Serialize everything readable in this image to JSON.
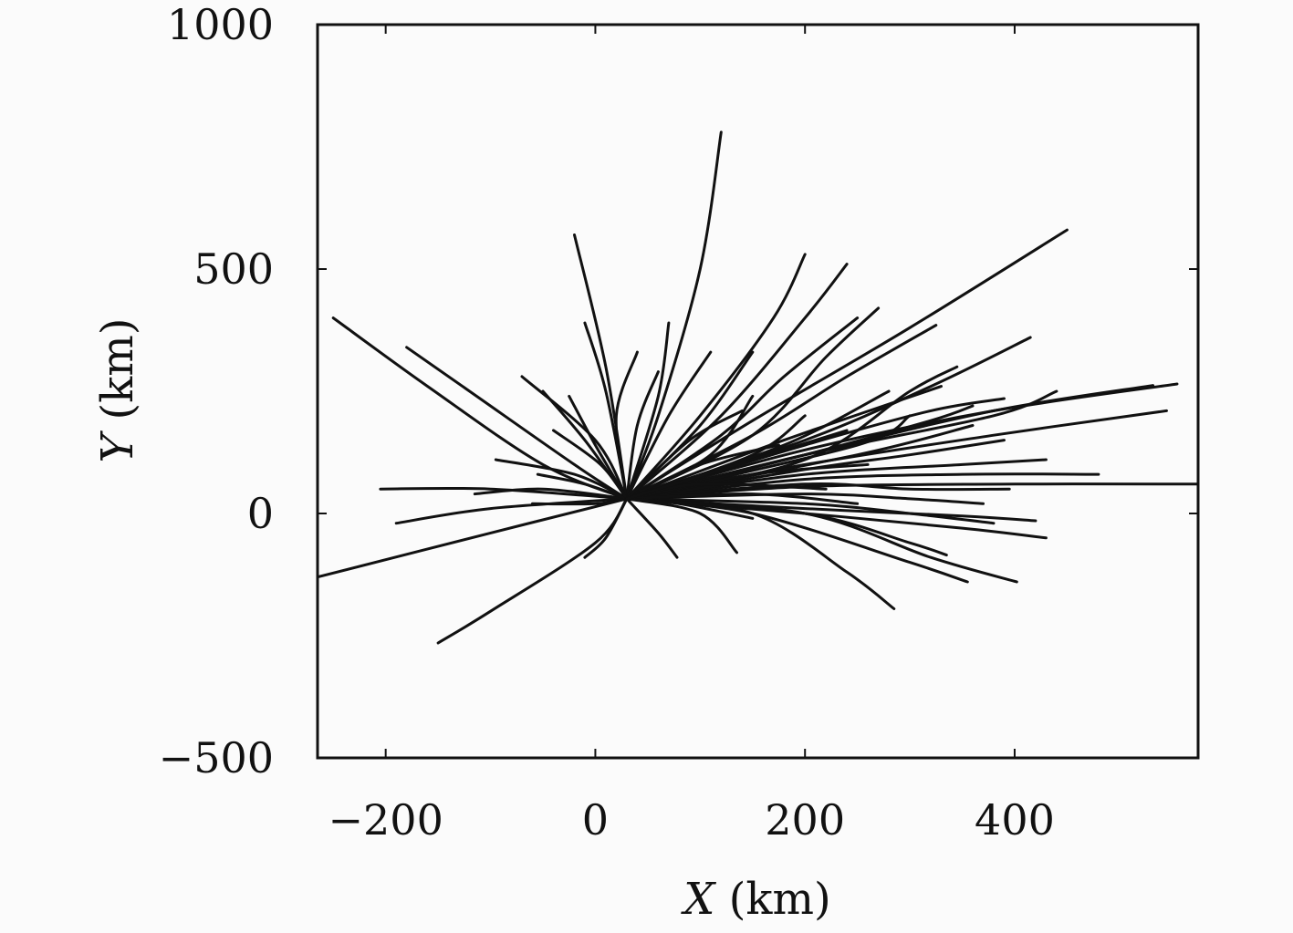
{
  "chart_data": {
    "type": "line",
    "xlabel_var": "X",
    "xlabel_unit": " (km)",
    "ylabel_var": "Y",
    "ylabel_unit": " (km)",
    "xlim": [
      -265,
      575
    ],
    "ylim": [
      -500,
      1000
    ],
    "x_ticks": [
      {
        "value": -200,
        "label": "−200"
      },
      {
        "value": 0,
        "label": "0"
      },
      {
        "value": 200,
        "label": "200"
      },
      {
        "value": 400,
        "label": "400"
      }
    ],
    "y_ticks": [
      {
        "value": -500,
        "label": "−500"
      },
      {
        "value": 0,
        "label": "0"
      },
      {
        "value": 500,
        "label": "500"
      },
      {
        "value": 1000,
        "label": "1000"
      }
    ],
    "line_color": "#111111",
    "grid": false,
    "legend": false,
    "series": [
      {
        "x": [
          30,
          60,
          100,
          120
        ],
        "y": [
          30,
          200,
          500,
          780
        ]
      },
      {
        "x": [
          30,
          150,
          300,
          450
        ],
        "y": [
          30,
          190,
          380,
          580
        ]
      },
      {
        "x": [
          30,
          100,
          170,
          200
        ],
        "y": [
          30,
          200,
          400,
          530
        ]
      },
      {
        "x": [
          30,
          120,
          200,
          240
        ],
        "y": [
          30,
          200,
          400,
          510
        ]
      },
      {
        "x": [
          30,
          150,
          220,
          270
        ],
        "y": [
          30,
          160,
          320,
          420
        ]
      },
      {
        "x": [
          30,
          150,
          240,
          325
        ],
        "y": [
          30,
          160,
          280,
          385
        ]
      },
      {
        "x": [
          30,
          200,
          320,
          415
        ],
        "y": [
          30,
          150,
          260,
          360
        ]
      },
      {
        "x": [
          30,
          120,
          180,
          250
        ],
        "y": [
          30,
          160,
          280,
          400
        ]
      },
      {
        "x": [
          30,
          100,
          150
        ],
        "y": [
          30,
          180,
          330
        ]
      },
      {
        "x": [
          30,
          200,
          380,
          555
        ],
        "y": [
          30,
          130,
          210,
          265
        ]
      },
      {
        "x": [
          30,
          200,
          380,
          532
        ],
        "y": [
          30,
          120,
          210,
          262
        ]
      },
      {
        "x": [
          30,
          200,
          380,
          545
        ],
        "y": [
          30,
          100,
          160,
          210
        ]
      },
      {
        "x": [
          30,
          200,
          380,
          440
        ],
        "y": [
          30,
          120,
          200,
          250
        ]
      },
      {
        "x": [
          30,
          200,
          320,
          390
        ],
        "y": [
          30,
          140,
          210,
          235
        ]
      },
      {
        "x": [
          30,
          200,
          320,
          360
        ],
        "y": [
          30,
          120,
          190,
          220
        ]
      },
      {
        "x": [
          30,
          200,
          300,
          345
        ],
        "y": [
          30,
          110,
          250,
          300
        ]
      },
      {
        "x": [
          30,
          200,
          300,
          390
        ],
        "y": [
          30,
          90,
          120,
          150
        ]
      },
      {
        "x": [
          30,
          200,
          350,
          480
        ],
        "y": [
          30,
          70,
          80,
          80
        ]
      },
      {
        "x": [
          30,
          200,
          400,
          575
        ],
        "y": [
          30,
          55,
          60,
          60
        ]
      },
      {
        "x": [
          30,
          200,
          350,
          430
        ],
        "y": [
          30,
          80,
          100,
          110
        ]
      },
      {
        "x": [
          30,
          200,
          300,
          395
        ],
        "y": [
          30,
          60,
          50,
          50
        ]
      },
      {
        "x": [
          30,
          200,
          300,
          370
        ],
        "y": [
          30,
          40,
          30,
          20
        ]
      },
      {
        "x": [
          30,
          200,
          300,
          380
        ],
        "y": [
          30,
          20,
          0,
          -20
        ]
      },
      {
        "x": [
          30,
          200,
          350,
          420
        ],
        "y": [
          30,
          10,
          -5,
          -15
        ]
      },
      {
        "x": [
          30,
          200,
          350,
          430
        ],
        "y": [
          30,
          0,
          -30,
          -50
        ]
      },
      {
        "x": [
          30,
          200,
          300,
          335
        ],
        "y": [
          30,
          0,
          -60,
          -85
        ]
      },
      {
        "x": [
          30,
          150,
          300,
          355
        ],
        "y": [
          30,
          0,
          -100,
          -140
        ]
      },
      {
        "x": [
          30,
          200,
          320,
          402
        ],
        "y": [
          30,
          0,
          -90,
          -140
        ]
      },
      {
        "x": [
          30,
          150,
          240,
          285
        ],
        "y": [
          30,
          0,
          -120,
          -195
        ]
      },
      {
        "x": [
          30,
          100,
          135
        ],
        "y": [
          30,
          0,
          -80
        ]
      },
      {
        "x": [
          30,
          60,
          78
        ],
        "y": [
          30,
          -40,
          -90
        ]
      },
      {
        "x": [
          30,
          10,
          -10
        ],
        "y": [
          30,
          -50,
          -90
        ]
      },
      {
        "x": [
          30,
          0,
          -100,
          -150
        ],
        "y": [
          30,
          -60,
          -200,
          -265
        ]
      },
      {
        "x": [
          30,
          -100,
          -265
        ],
        "y": [
          30,
          -40,
          -130
        ]
      },
      {
        "x": [
          30,
          -100,
          -190
        ],
        "y": [
          30,
          10,
          -20
        ]
      },
      {
        "x": [
          30,
          -100,
          -205
        ],
        "y": [
          30,
          50,
          50
        ]
      },
      {
        "x": [
          30,
          -50,
          -115
        ],
        "y": [
          30,
          50,
          40
        ]
      },
      {
        "x": [
          30,
          -20,
          -95
        ],
        "y": [
          30,
          80,
          110
        ]
      },
      {
        "x": [
          30,
          -20,
          -120,
          -180
        ],
        "y": [
          30,
          100,
          250,
          340
        ]
      },
      {
        "x": [
          30,
          -50,
          -160,
          -250
        ],
        "y": [
          30,
          100,
          260,
          400
        ]
      },
      {
        "x": [
          30,
          0,
          -70
        ],
        "y": [
          30,
          150,
          280
        ]
      },
      {
        "x": [
          30,
          -10,
          -50
        ],
        "y": [
          30,
          150,
          250
        ]
      },
      {
        "x": [
          30,
          0,
          -25
        ],
        "y": [
          30,
          140,
          240
        ]
      },
      {
        "x": [
          30,
          10,
          -20
        ],
        "y": [
          30,
          300,
          570
        ]
      },
      {
        "x": [
          30,
          10,
          -10
        ],
        "y": [
          30,
          250,
          390
        ]
      },
      {
        "x": [
          30,
          20,
          40
        ],
        "y": [
          30,
          200,
          330
        ]
      },
      {
        "x": [
          30,
          40,
          60
        ],
        "y": [
          30,
          180,
          290
        ]
      },
      {
        "x": [
          30,
          60,
          70
        ],
        "y": [
          30,
          240,
          390
        ]
      },
      {
        "x": [
          30,
          70,
          110
        ],
        "y": [
          30,
          200,
          330
        ]
      },
      {
        "x": [
          30,
          110,
          150
        ],
        "y": [
          30,
          120,
          240
        ]
      },
      {
        "x": [
          30,
          150,
          200
        ],
        "y": [
          30,
          120,
          200
        ]
      },
      {
        "x": [
          30,
          250,
          300
        ],
        "y": [
          30,
          140,
          200
        ]
      },
      {
        "x": [
          30,
          250,
          360
        ],
        "y": [
          30,
          120,
          180
        ]
      },
      {
        "x": [
          30,
          100,
          175
        ],
        "y": [
          30,
          100,
          140
        ]
      },
      {
        "x": [
          30,
          150,
          260
        ],
        "y": [
          30,
          80,
          100
        ]
      },
      {
        "x": [
          30,
          100,
          220
        ],
        "y": [
          30,
          60,
          50
        ]
      },
      {
        "x": [
          30,
          150,
          250
        ],
        "y": [
          30,
          40,
          20
        ]
      },
      {
        "x": [
          30,
          80,
          150
        ],
        "y": [
          30,
          20,
          -10
        ]
      },
      {
        "x": [
          30,
          0,
          -60
        ],
        "y": [
          30,
          20,
          20
        ]
      },
      {
        "x": [
          30,
          -10,
          -55
        ],
        "y": [
          30,
          60,
          80
        ]
      },
      {
        "x": [
          30,
          5,
          -40
        ],
        "y": [
          30,
          100,
          170
        ]
      },
      {
        "x": [
          30,
          90,
          140
        ],
        "y": [
          30,
          150,
          210
        ]
      },
      {
        "x": [
          30,
          180,
          330
        ],
        "y": [
          30,
          150,
          260
        ]
      },
      {
        "x": [
          30,
          180,
          280
        ],
        "y": [
          30,
          140,
          250
        ]
      },
      {
        "x": [
          30,
          150,
          240
        ],
        "y": [
          30,
          110,
          170
        ]
      }
    ]
  }
}
